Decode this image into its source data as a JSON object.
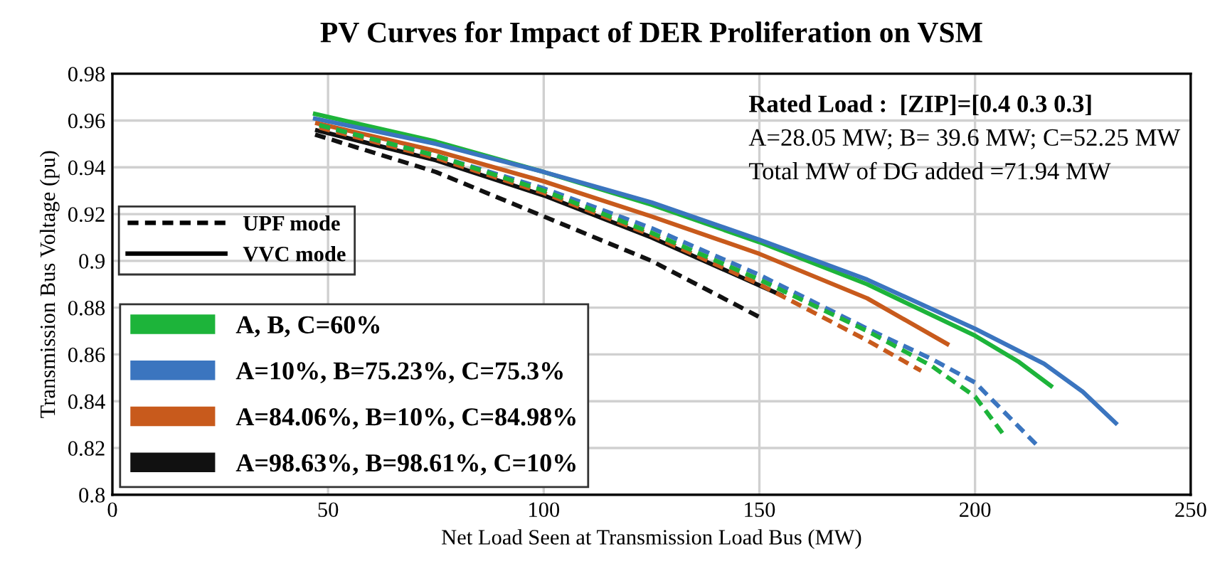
{
  "chart_data": {
    "type": "line",
    "title": "PV Curves for Impact of DER Proliferation on VSM",
    "xlabel": "Net Load Seen at Transmission Load Bus (MW)",
    "ylabel": "Transmission Bus Voltage (pu)",
    "annotations": [
      "Rated Load :  [ZIP]=[0.4 0.3 0.3]",
      "A=28.05 MW; B= 39.6 MW; C=52.25 MW",
      "Total MW of DG added =71.94 MW",
      "UPF mode",
      "VVC mode"
    ],
    "series": [
      {
        "color": "#1db43a",
        "line_style": "dashed",
        "x": [
          48,
          75,
          100,
          125,
          150,
          175,
          190,
          200,
          206.5
        ],
        "values": [
          0.958,
          0.945,
          0.93,
          0.912,
          0.892,
          0.87,
          0.855,
          0.842,
          0.826
        ]
      },
      {
        "color": "#3b75bf",
        "line_style": "dashed",
        "x": [
          48,
          75,
          100,
          125,
          150,
          175,
          190,
          200,
          215
        ],
        "values": [
          0.958,
          0.945,
          0.931,
          0.914,
          0.894,
          0.871,
          0.858,
          0.848,
          0.82
        ]
      },
      {
        "color": "#c85a1c",
        "line_style": "dashed",
        "x": [
          48,
          75,
          100,
          125,
          150,
          175,
          187.5
        ],
        "values": [
          0.957,
          0.944,
          0.929,
          0.911,
          0.89,
          0.866,
          0.853
        ]
      },
      {
        "color": "#111111",
        "line_style": "dashed",
        "x": [
          47,
          75,
          100,
          125,
          150
        ],
        "values": [
          0.954,
          0.938,
          0.919,
          0.9,
          0.876
        ]
      },
      {
        "name": "A, B, C=60%",
        "color": "#1db43a",
        "line_style": "solid",
        "x": [
          46.5,
          75,
          100,
          125,
          150,
          175,
          200,
          210,
          218
        ],
        "values": [
          0.963,
          0.951,
          0.938,
          0.924,
          0.908,
          0.89,
          0.868,
          0.857,
          0.846
        ]
      },
      {
        "name": "A=10%, B=75.23%, C=75.3%",
        "color": "#3b75bf",
        "line_style": "solid",
        "x": [
          46.5,
          75,
          100,
          125,
          150,
          175,
          200,
          216,
          225,
          233
        ],
        "values": [
          0.961,
          0.95,
          0.938,
          0.925,
          0.909,
          0.892,
          0.871,
          0.856,
          0.844,
          0.83
        ]
      },
      {
        "name": "A=84.06%, B=10%, C=84.98%",
        "color": "#c85a1c",
        "line_style": "solid",
        "x": [
          47,
          75,
          100,
          125,
          150,
          175,
          194
        ],
        "values": [
          0.959,
          0.947,
          0.934,
          0.919,
          0.903,
          0.884,
          0.864
        ]
      },
      {
        "name": "A=98.63%, B=98.61%, C=10%",
        "color": "#111111",
        "line_style": "solid",
        "x": [
          47,
          75,
          100,
          125,
          155.5
        ],
        "values": [
          0.956,
          0.943,
          0.928,
          0.91,
          0.885
        ]
      }
    ],
    "xlim": [
      0,
      250
    ],
    "xticks": [
      0,
      50,
      100,
      150,
      200,
      250
    ],
    "ylim": [
      0.8,
      0.98
    ],
    "yticks": [
      0.8,
      0.82,
      0.84,
      0.86,
      0.88,
      0.9,
      0.92,
      0.94,
      0.96,
      0.98
    ],
    "grid": true,
    "legend": "left",
    "marker": "none"
  }
}
